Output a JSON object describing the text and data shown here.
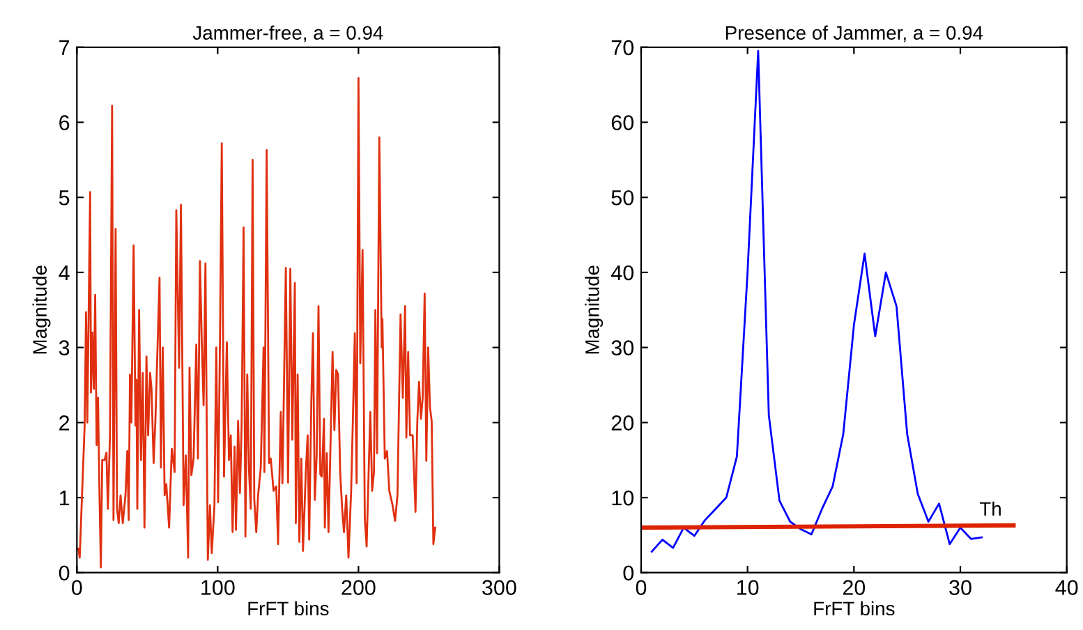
{
  "chart_data": [
    {
      "type": "line",
      "title": "Jammer-free, a = 0.94",
      "xlabel": "FrFT bins",
      "ylabel": "Magnitude",
      "xlim": [
        0,
        300
      ],
      "xticks": [
        0,
        100,
        200,
        300
      ],
      "ylim": [
        0,
        7
      ],
      "yticks": [
        0,
        1,
        2,
        3,
        4,
        5,
        6,
        7
      ],
      "grid": false,
      "legend": false,
      "series": [
        {
          "color": "#e03010",
          "x": [
            1,
            2,
            5.5,
            6.5,
            7.4,
            9.4,
            10,
            11,
            12,
            13,
            14,
            15,
            16,
            17,
            18,
            19.7,
            21,
            22,
            23.5,
            25,
            26,
            27.5,
            28.5,
            29.7,
            31,
            32.6,
            34.5,
            35.8,
            36.8,
            37.7,
            38.7,
            40.3,
            41.6,
            42.3,
            42.9,
            44.2,
            45.5,
            46.8,
            48,
            49.4,
            50.6,
            52,
            53,
            54.5,
            55.8,
            57.7,
            58.7,
            59.7,
            61,
            62.3,
            63.5,
            65.5,
            67.4,
            69.4,
            70.6,
            72.6,
            73.9,
            75.8,
            77.4,
            79,
            80,
            81.3,
            82.9,
            84.8,
            86,
            87.4,
            88.7,
            90,
            91.3,
            93,
            94.5,
            95.8,
            97.7,
            99,
            100.3,
            101.6,
            102.9,
            104.5,
            106.5,
            108,
            109.3,
            110.6,
            112,
            113,
            114.5,
            115.8,
            117,
            118.4,
            119.7,
            121,
            122.3,
            123.5,
            124.8,
            126,
            127.4,
            128.7,
            130.6,
            132.6,
            133.2,
            134.8,
            136.5,
            137.7,
            139.7,
            141.6,
            142.9,
            144.8,
            146,
            148.4,
            150,
            151.6,
            153,
            154.8,
            155.5,
            156.8,
            158,
            159.4,
            160.6,
            162.6,
            163.9,
            165,
            166.5,
            167.7,
            169,
            170.3,
            171.6,
            172.9,
            174,
            175.5,
            176.1,
            177.5,
            178.7,
            180,
            181.6,
            182.9,
            184.2,
            185.5,
            187,
            188.4,
            189.7,
            191.3,
            192.9,
            194.8,
            196,
            197.4,
            198.7,
            200,
            201.3,
            202.9,
            204.5,
            205.8,
            207,
            208.4,
            209.7,
            211,
            212,
            213.2,
            214.8,
            216.5,
            217,
            218.7,
            220.3,
            221.9,
            224.2,
            226,
            227.7,
            229.9,
            231.5,
            233.1,
            234,
            235.3,
            236.6,
            238.5,
            240.5,
            241.8,
            243,
            244.4,
            245.6,
            247,
            248.2,
            249.5,
            250.8,
            252,
            253.2,
            254.5
          ],
          "values": [
            0.32,
            0.2,
            1.96,
            3.47,
            2.0,
            5.07,
            2.4,
            3.2,
            2.45,
            3.7,
            1.7,
            2.33,
            1.1,
            0.07,
            1.5,
            1.5,
            1.6,
            0.85,
            1.83,
            6.22,
            0.7,
            4.58,
            0.85,
            0.66,
            1.03,
            0.66,
            1.03,
            1.62,
            0.7,
            2.64,
            2.0,
            4.36,
            1.96,
            2.57,
            0.85,
            3.5,
            1.5,
            2.66,
            0.6,
            2.88,
            1.83,
            2.66,
            2.45,
            1.46,
            2.05,
            3.28,
            3.93,
            1.4,
            3.0,
            1.03,
            1.18,
            0.6,
            1.65,
            1.34,
            4.83,
            2.73,
            4.9,
            0.9,
            1.56,
            0.2,
            2.73,
            1.3,
            1.52,
            3.04,
            1.52,
            4.15,
            3.07,
            2.23,
            4.12,
            0.17,
            0.9,
            0.26,
            0.9,
            3.0,
            0.94,
            3.04,
            5.72,
            1.28,
            3.07,
            1.5,
            1.83,
            0.54,
            1.68,
            0.57,
            2.02,
            1.06,
            1.96,
            4.6,
            0.48,
            2.64,
            1.34,
            0.85,
            5.5,
            0.97,
            0.54,
            1.03,
            1.4,
            3.0,
            1.34,
            5.63,
            1.46,
            1.52,
            1.09,
            1.15,
            0.38,
            2.14,
            1.19,
            4.06,
            1.2,
            4.05,
            1.77,
            3.86,
            0.66,
            2.64,
            0.41,
            1.52,
            0.29,
            1.34,
            1.83,
            0.44,
            2.27,
            3.19,
            0.97,
            1.56,
            3.55,
            1.31,
            1.28,
            2.05,
            0.6,
            1.59,
            0.54,
            1.59,
            2.94,
            1.9,
            2.7,
            2.64,
            1.34,
            0.85,
            0.54,
            1.03,
            0.2,
            1.09,
            2.02,
            3.19,
            1.19,
            6.59,
            2.79,
            4.3,
            0.72,
            0.35,
            1.19,
            2.14,
            1.09,
            1.34,
            3.5,
            1.59,
            5.8,
            3.0,
            3.38,
            1.52,
            1.62,
            1.09,
            0.9,
            0.69,
            1.03,
            3.44,
            2.33,
            3.55,
            1.8,
            2.94,
            1.83,
            1.83,
            0.81,
            2.02,
            2.54,
            2.05,
            2.33,
            3.72,
            1.49,
            3.0,
            2.2,
            2.02,
            0.38,
            0.6
          ]
        }
      ]
    },
    {
      "type": "line",
      "title": "Presence of Jammer, a = 0.94",
      "xlabel": "FrFT bins",
      "ylabel": "Magnitude",
      "xlim": [
        0,
        40
      ],
      "xticks": [
        0,
        10,
        20,
        30,
        40
      ],
      "ylim": [
        0,
        70
      ],
      "yticks": [
        0,
        10,
        20,
        30,
        40,
        50,
        60,
        70
      ],
      "grid": false,
      "legend": false,
      "annotations": [
        "Th"
      ],
      "series": [
        {
          "color": "#0000ff",
          "x": [
            1,
            2,
            3,
            4,
            5,
            6,
            7,
            8,
            9,
            10,
            11,
            12,
            13,
            14,
            15,
            16,
            17,
            18,
            19,
            20,
            21,
            22,
            23,
            24,
            25,
            26,
            27,
            28,
            29,
            30,
            31,
            32
          ],
          "values": [
            2.8,
            4.4,
            3.3,
            6,
            4.9,
            7,
            8.5,
            10,
            15.5,
            40,
            69.5,
            21,
            9.6,
            6.8,
            5.8,
            5.1,
            8.5,
            11.5,
            18.5,
            33,
            42.5,
            31.5,
            40,
            35.5,
            18.5,
            10.5,
            6.8,
            9.2,
            3.8,
            6,
            4.5,
            4.7
          ]
        },
        {
          "color": "#dd2200",
          "x": [
            0,
            35
          ],
          "values": [
            6.0,
            6.3
          ]
        }
      ]
    }
  ]
}
